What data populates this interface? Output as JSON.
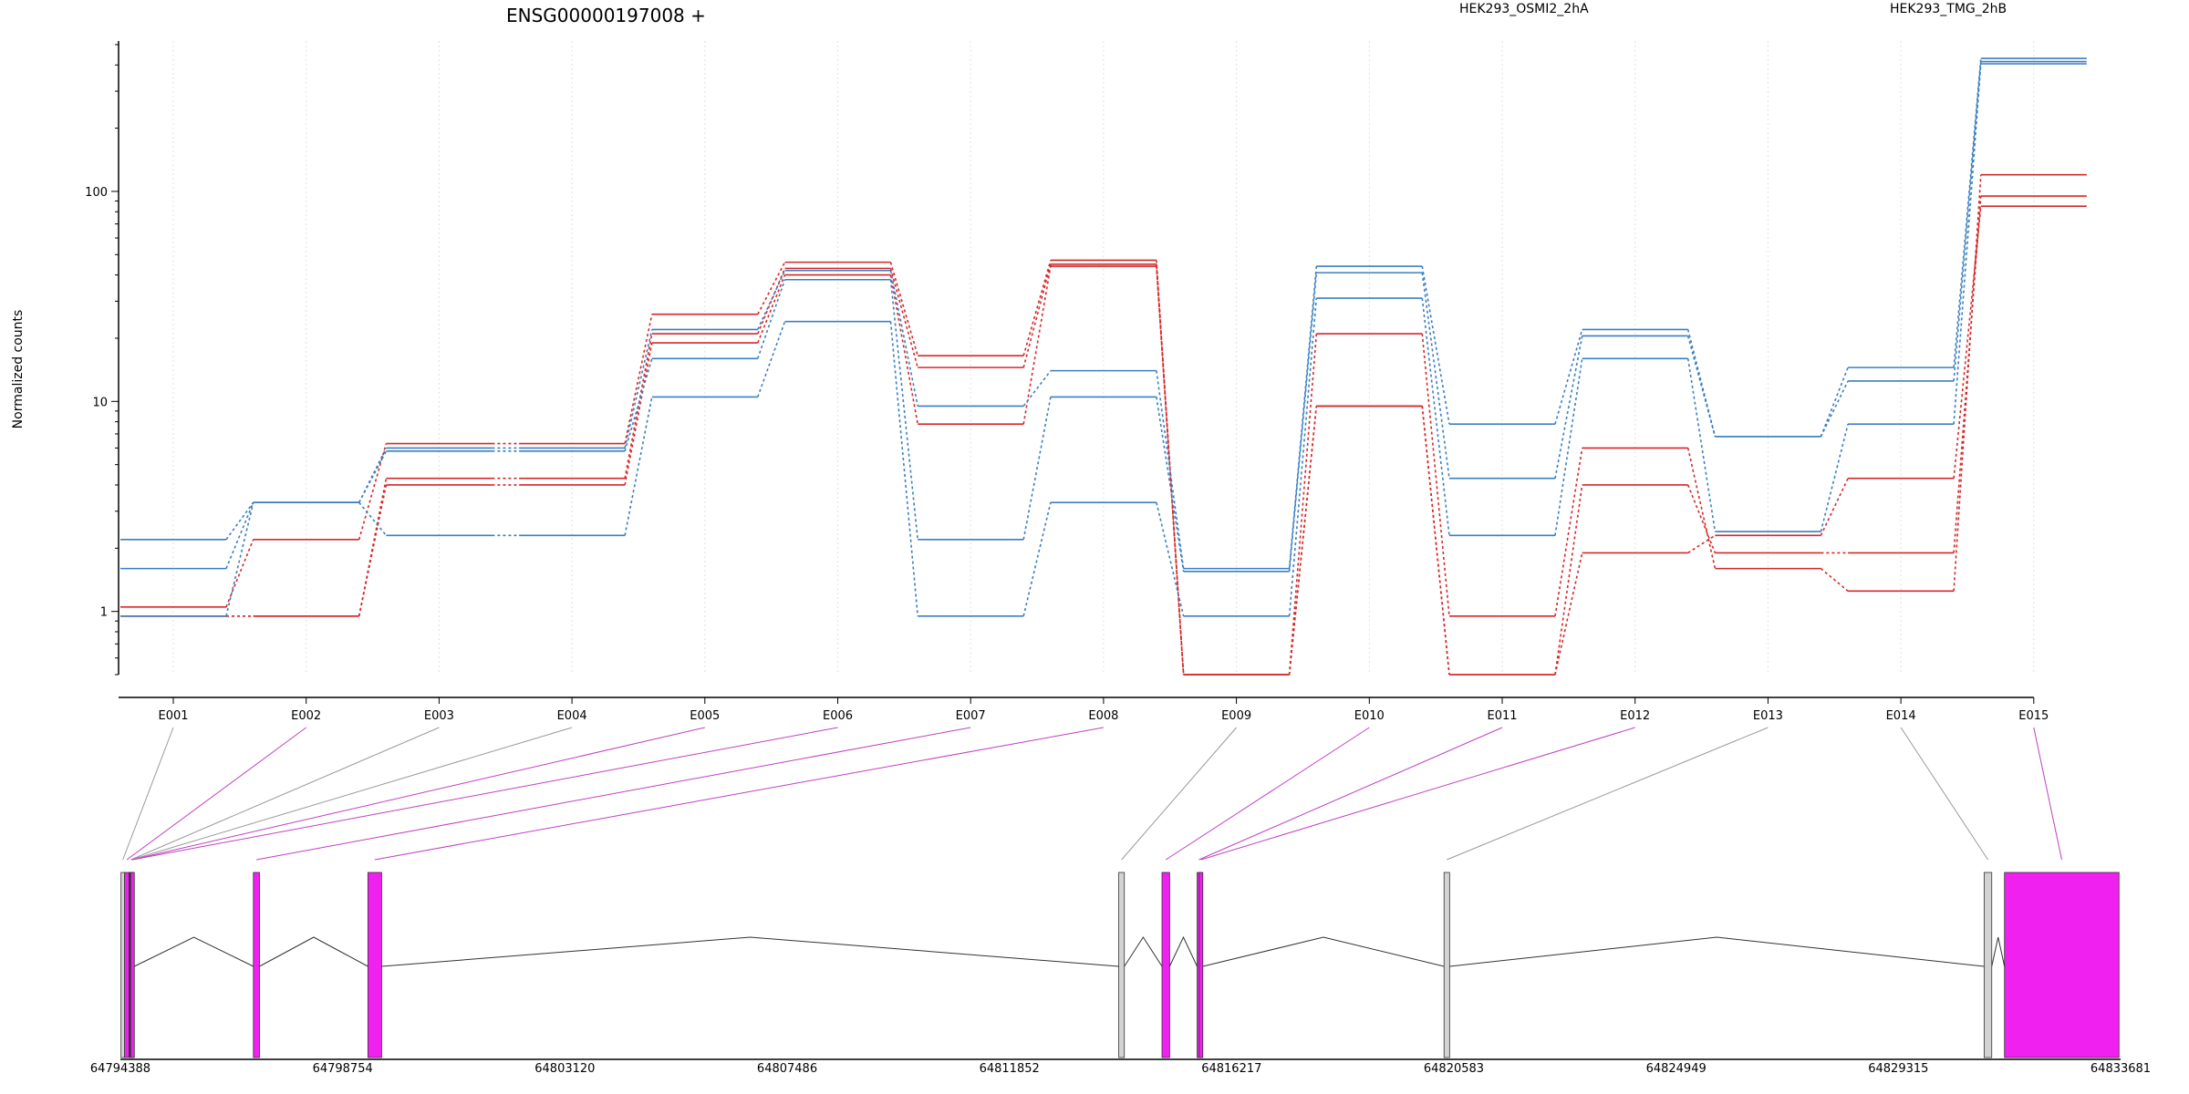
{
  "chart_data": {
    "type": "line",
    "title": "ENSG00000197008 +",
    "ylabel": "Normalized counts",
    "xlabel": "",
    "y_scale": "log",
    "ylim": [
      0.5,
      520
    ],
    "y_ticks": [
      1,
      10,
      100
    ],
    "y_tick_labels": [
      "1",
      "10",
      "100"
    ],
    "categories": [
      "E001",
      "E002",
      "E003",
      "E004",
      "E005",
      "E006",
      "E007",
      "E008",
      "E009",
      "E010",
      "E011",
      "E012",
      "E013",
      "E014",
      "E015"
    ],
    "colors": {
      "HEK293_OSMI2_2hA": "#d62728",
      "HEK293_TMG_2hB": "#3a7fc0",
      "exon_dexseq": "#f020f0",
      "exon_plain": "#d3d3d3"
    },
    "legend": {
      "placement": "top",
      "entries": [
        {
          "name": "HEK293_OSMI2_2hA",
          "color": "#d62728"
        },
        {
          "name": "HEK293_TMG_2hB",
          "color": "#3a7fc0"
        }
      ]
    },
    "series": [
      {
        "name": "HEK293_OSMI2_2hA",
        "group": "OSMI2",
        "color": "#d62728",
        "values": [
          1.05,
          2.2,
          6.3,
          6.3,
          26,
          46,
          16.5,
          47,
          0.5,
          21,
          0.95,
          6,
          1.6,
          1.25,
          120
        ]
      },
      {
        "name": "HEK293_OSMI2_2hA",
        "group": "OSMI2",
        "color": "#d62728",
        "values": [
          0.95,
          0.95,
          4.3,
          4.3,
          21,
          43,
          14.5,
          45,
          0.5,
          9.5,
          0.5,
          4,
          1.9,
          1.9,
          95
        ]
      },
      {
        "name": "HEK293_OSMI2_2hA",
        "group": "OSMI2",
        "color": "#d62728",
        "values": [
          0.95,
          0.95,
          4,
          4,
          19,
          40,
          7.8,
          44,
          0.5,
          9.5,
          0.5,
          1.9,
          2.3,
          4.3,
          85
        ]
      },
      {
        "name": "HEK293_TMG_2hB",
        "group": "TMG",
        "color": "#3a7fc0",
        "values": [
          2.2,
          3.3,
          6,
          6,
          22,
          42,
          9.5,
          14,
          1.6,
          44,
          7.8,
          22,
          6.8,
          14.5,
          430
        ]
      },
      {
        "name": "HEK293_TMG_2hB",
        "group": "TMG",
        "color": "#3a7fc0",
        "values": [
          1.6,
          3.3,
          5.8,
          5.8,
          16,
          38,
          2.2,
          10.5,
          1.55,
          41,
          4.3,
          20.5,
          6.8,
          12.5,
          415
        ]
      },
      {
        "name": "HEK293_TMG_2hB",
        "group": "TMG",
        "color": "#3a7fc0",
        "values": [
          0.95,
          3.3,
          2.3,
          2.3,
          10.5,
          24,
          0.95,
          3.3,
          0.95,
          31,
          2.3,
          16,
          2.4,
          7.8,
          405
        ]
      }
    ],
    "gene_model": {
      "region_start": 64794388,
      "region_end": 64833681,
      "coordinate_ticks": [
        64794388,
        64798754,
        64803120,
        64807486,
        64811852,
        64816217,
        64820583,
        64824949,
        64829315,
        64833681
      ],
      "coordinate_tick_labels": [
        "64794388",
        "64798754",
        "64803120",
        "64807486",
        "64811852",
        "64816217",
        "64820583",
        "64824949",
        "64829315",
        "64833681"
      ],
      "exons": [
        {
          "id": "E001",
          "start": 64794400,
          "end": 64794470,
          "significant": false
        },
        {
          "id": "E002",
          "start": 64794470,
          "end": 64794560,
          "significant": true
        },
        {
          "id": "E003",
          "start": 64794560,
          "end": 64794570,
          "significant": false
        },
        {
          "id": "E004",
          "start": 64794570,
          "end": 64794580,
          "significant": false
        },
        {
          "id": "E005",
          "start": 64794580,
          "end": 64794590,
          "significant": true
        },
        {
          "id": "E006",
          "start": 64794590,
          "end": 64794600,
          "significant": true
        },
        {
          "id": "E007",
          "start": 64797000,
          "end": 64797120,
          "significant": true
        },
        {
          "id": "E008",
          "start": 64799250,
          "end": 64799520,
          "significant": true
        },
        {
          "id": "E009",
          "start": 64814000,
          "end": 64814110,
          "significant": false
        },
        {
          "id": "E010",
          "start": 64814850,
          "end": 64815000,
          "significant": true
        },
        {
          "id": "E011",
          "start": 64815540,
          "end": 64815580,
          "significant": true
        },
        {
          "id": "E012",
          "start": 64815580,
          "end": 64815620,
          "significant": true
        },
        {
          "id": "E013",
          "start": 64820390,
          "end": 64820500,
          "significant": false
        },
        {
          "id": "E014",
          "start": 64831000,
          "end": 64831150,
          "significant": false
        },
        {
          "id": "E015",
          "start": 64831400,
          "end": 64833650,
          "significant": true
        }
      ]
    }
  }
}
